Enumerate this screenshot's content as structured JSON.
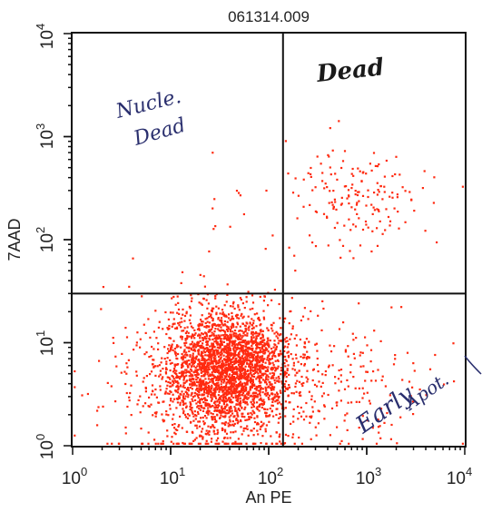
{
  "chart_data": {
    "type": "scatter",
    "title": "061314.009",
    "xlabel": "An PE",
    "ylabel": "7AAD",
    "xscale": "log",
    "yscale": "log",
    "xlim": [
      1,
      10000
    ],
    "ylim": [
      1,
      10000
    ],
    "x_tick_labels": [
      {
        "base": "10",
        "exp": "0"
      },
      {
        "base": "10",
        "exp": "1"
      },
      {
        "base": "10",
        "exp": "2"
      },
      {
        "base": "10",
        "exp": "3"
      },
      {
        "base": "10",
        "exp": "4"
      }
    ],
    "y_tick_labels": [
      {
        "base": "10",
        "exp": "0"
      },
      {
        "base": "10",
        "exp": "1"
      },
      {
        "base": "10",
        "exp": "2"
      },
      {
        "base": "10",
        "exp": "3"
      },
      {
        "base": "10",
        "exp": "4"
      }
    ],
    "quadrant_gate": {
      "x": 140,
      "y": 30
    },
    "point_color": "#ff2a10",
    "grid": false,
    "populations": [
      {
        "region": "lower-left (live)",
        "center": [
          40,
          5.5
        ],
        "spread_log10": [
          0.32,
          0.28
        ],
        "count": 2600
      },
      {
        "region": "lower-left diffuse",
        "center": [
          25,
          4
        ],
        "spread_log10": [
          0.55,
          0.45
        ],
        "count": 500
      },
      {
        "region": "lower-right",
        "center": [
          600,
          4
        ],
        "spread_log10": [
          0.45,
          0.35
        ],
        "count": 180
      },
      {
        "region": "upper-right",
        "center": [
          900,
          250
        ],
        "spread_log10": [
          0.35,
          0.25
        ],
        "count": 170
      },
      {
        "region": "upper-left",
        "center": [
          60,
          150
        ],
        "spread_log10": [
          0.4,
          0.5
        ],
        "count": 18
      }
    ],
    "annotations": [
      {
        "text": "Nucle.",
        "note": "handwritten"
      },
      {
        "text": "Dead",
        "note": "handwritten"
      },
      {
        "text": "Dead",
        "note": "handwritten"
      },
      {
        "text": "Early",
        "note": "handwritten"
      },
      {
        "text": "Apot.",
        "note": "handwritten"
      }
    ]
  }
}
